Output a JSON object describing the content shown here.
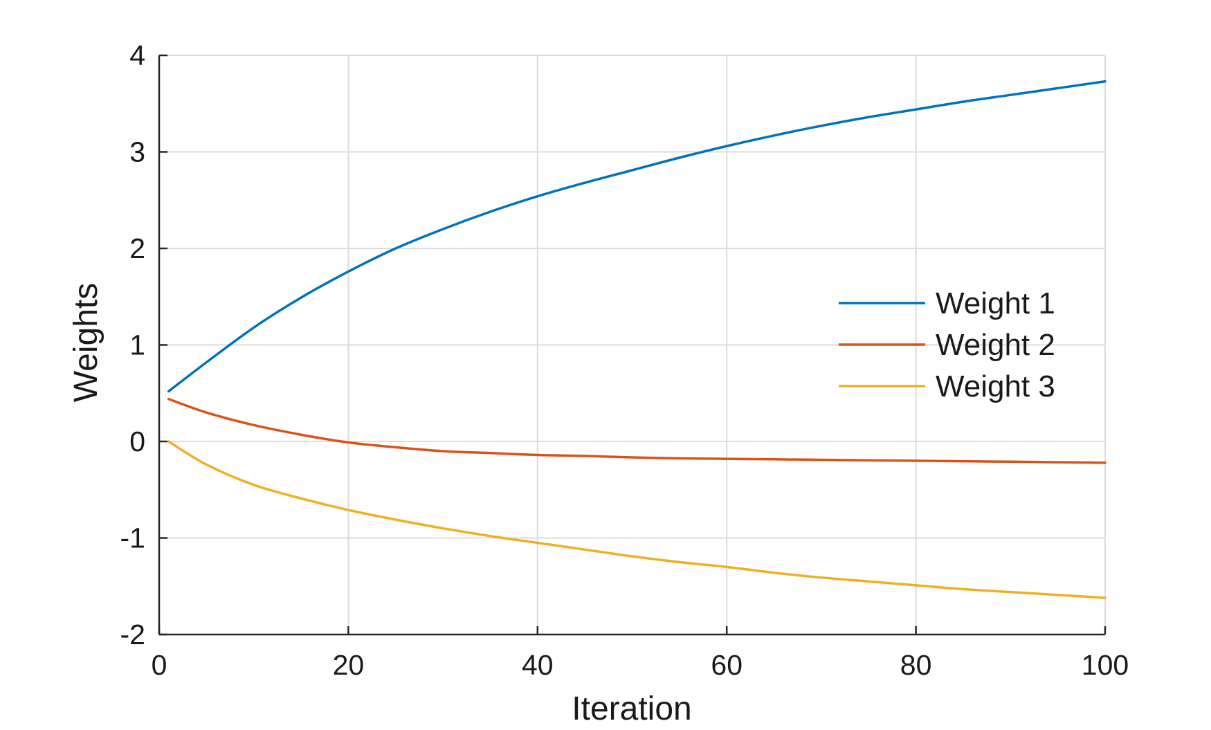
{
  "chart_data": {
    "type": "line",
    "title": "",
    "xlabel": "Iteration",
    "ylabel": "Weights",
    "xlim": [
      0,
      100
    ],
    "ylim": [
      -2,
      4
    ],
    "xticks": [
      0,
      20,
      40,
      60,
      80,
      100
    ],
    "yticks": [
      -2,
      -1,
      0,
      1,
      2,
      3,
      4
    ],
    "xtick_labels": [
      "0",
      "20",
      "40",
      "60",
      "80",
      "100"
    ],
    "ytick_labels": [
      "-2",
      "-1",
      "0",
      "1",
      "2",
      "3",
      "4"
    ],
    "grid": true,
    "legend_position": "right",
    "series": [
      {
        "name": "Weight 1",
        "color": "#0072BD",
        "x": [
          1,
          5,
          10,
          15,
          20,
          25,
          30,
          35,
          40,
          45,
          50,
          55,
          60,
          65,
          70,
          75,
          80,
          85,
          90,
          95,
          100
        ],
        "values": [
          0.52,
          0.82,
          1.18,
          1.49,
          1.76,
          2.0,
          2.2,
          2.38,
          2.54,
          2.68,
          2.81,
          2.94,
          3.06,
          3.17,
          3.27,
          3.36,
          3.44,
          3.52,
          3.59,
          3.66,
          3.73
        ]
      },
      {
        "name": "Weight 2",
        "color": "#D95319",
        "x": [
          1,
          5,
          10,
          15,
          20,
          25,
          30,
          35,
          40,
          45,
          50,
          55,
          60,
          65,
          70,
          75,
          80,
          85,
          90,
          95,
          100
        ],
        "values": [
          0.44,
          0.3,
          0.17,
          0.07,
          -0.01,
          -0.06,
          -0.1,
          -0.12,
          -0.14,
          -0.15,
          -0.165,
          -0.175,
          -0.18,
          -0.185,
          -0.19,
          -0.195,
          -0.2,
          -0.205,
          -0.21,
          -0.215,
          -0.22
        ]
      },
      {
        "name": "Weight 3",
        "color": "#EDB120",
        "x": [
          1,
          5,
          10,
          15,
          20,
          25,
          30,
          35,
          40,
          45,
          50,
          55,
          60,
          65,
          70,
          75,
          80,
          85,
          90,
          95,
          100
        ],
        "values": [
          0.0,
          -0.24,
          -0.45,
          -0.59,
          -0.71,
          -0.81,
          -0.9,
          -0.98,
          -1.05,
          -1.12,
          -1.19,
          -1.25,
          -1.3,
          -1.36,
          -1.41,
          -1.45,
          -1.49,
          -1.53,
          -1.56,
          -1.59,
          -1.62
        ]
      }
    ]
  }
}
